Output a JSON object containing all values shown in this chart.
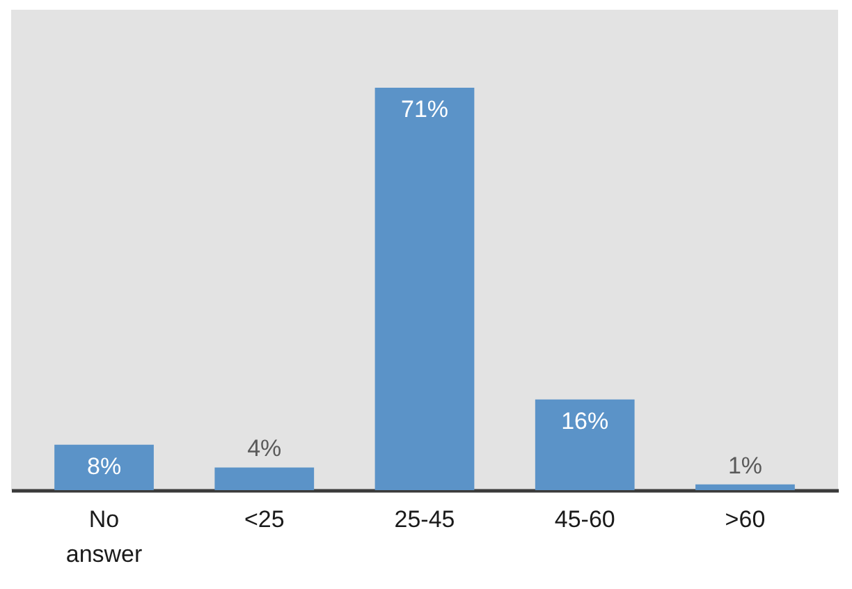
{
  "chart_data": {
    "type": "bar",
    "categories": [
      "No answer",
      "<25",
      "25-45",
      "45-60",
      ">60"
    ],
    "values": [
      8,
      4,
      71,
      16,
      1
    ],
    "value_labels": [
      "8%",
      "4%",
      "71%",
      "16%",
      "1%"
    ],
    "color": "#5b93c8",
    "grid": false
  }
}
